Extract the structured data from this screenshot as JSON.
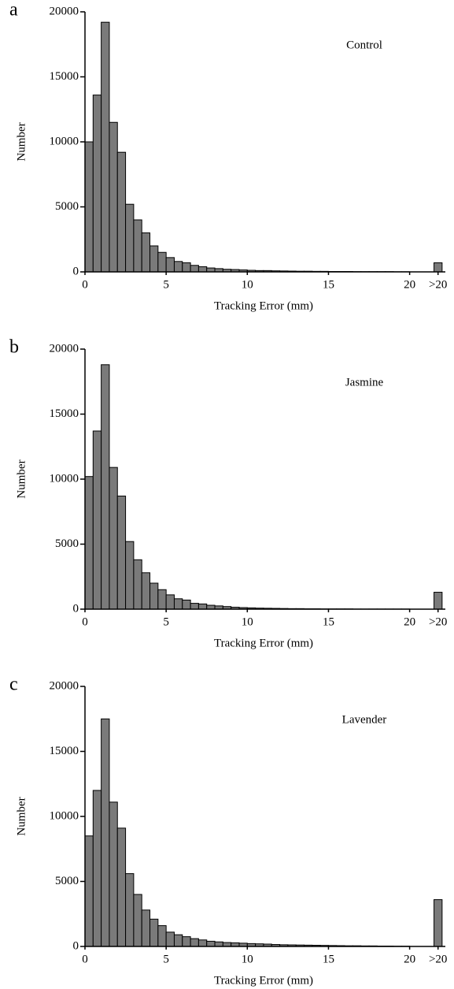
{
  "chart_data": [
    {
      "type": "histogram",
      "panel": "a",
      "title": "Control",
      "x_label": "Tracking Error (mm)",
      "y_label": "Number",
      "color": "#7a7a7a",
      "bins": [
        0,
        0.5,
        1,
        1.5,
        2,
        2.5,
        3,
        3.5,
        4,
        4.5,
        5,
        5.5,
        6,
        6.5,
        7,
        7.5,
        8,
        8.5,
        9,
        9.5,
        10,
        10.5,
        11,
        11.5,
        12,
        12.5,
        13,
        13.5,
        14,
        14.5,
        15,
        15.5,
        16,
        16.5,
        17,
        17.5,
        18,
        18.5,
        19,
        19.5,
        20,
        20.5,
        21,
        21.5,
        22
      ],
      "values": [
        10000,
        13600,
        19200,
        11500,
        9200,
        5200,
        4000,
        3000,
        2000,
        1500,
        1100,
        800,
        700,
        500,
        400,
        300,
        250,
        200,
        180,
        150,
        120,
        100,
        100,
        80,
        70,
        60,
        50,
        50,
        40,
        40,
        30,
        30,
        30,
        20,
        20,
        20,
        20,
        20,
        10,
        10,
        0,
        0,
        0,
        700
      ],
      "xlim": [
        0,
        22.2
      ],
      "ylim": [
        0,
        20000
      ],
      "xticks": [
        0,
        5,
        10,
        15,
        20,
        {
          "value": 21.75,
          "label": ">20"
        }
      ],
      "yticks": [
        0,
        5000,
        10000,
        15000,
        20000
      ]
    },
    {
      "type": "histogram",
      "panel": "b",
      "title": "Jasmine",
      "x_label": "Tracking Error (mm)",
      "y_label": "Number",
      "color": "#7a7a7a",
      "bins": [
        0,
        0.5,
        1,
        1.5,
        2,
        2.5,
        3,
        3.5,
        4,
        4.5,
        5,
        5.5,
        6,
        6.5,
        7,
        7.5,
        8,
        8.5,
        9,
        9.5,
        10,
        10.5,
        11,
        11.5,
        12,
        12.5,
        13,
        13.5,
        14,
        14.5,
        15,
        15.5,
        16,
        16.5,
        17,
        17.5,
        18,
        18.5,
        19,
        19.5,
        20,
        20.5,
        21,
        21.5,
        22
      ],
      "values": [
        10200,
        13700,
        18800,
        10900,
        8700,
        5200,
        3800,
        2800,
        2000,
        1500,
        1100,
        800,
        700,
        450,
        400,
        300,
        250,
        200,
        150,
        120,
        100,
        80,
        70,
        60,
        50,
        40,
        40,
        30,
        30,
        20,
        20,
        20,
        20,
        10,
        10,
        10,
        10,
        10,
        10,
        10,
        0,
        0,
        0,
        1300
      ],
      "xlim": [
        0,
        22.2
      ],
      "ylim": [
        0,
        20000
      ],
      "xticks": [
        0,
        5,
        10,
        15,
        20,
        {
          "value": 21.75,
          "label": ">20"
        }
      ],
      "yticks": [
        0,
        5000,
        10000,
        15000,
        20000
      ]
    },
    {
      "type": "histogram",
      "panel": "c",
      "title": "Lavender",
      "x_label": "Tracking Error (mm)",
      "y_label": "Number",
      "color": "#7a7a7a",
      "bins": [
        0,
        0.5,
        1,
        1.5,
        2,
        2.5,
        3,
        3.5,
        4,
        4.5,
        5,
        5.5,
        6,
        6.5,
        7,
        7.5,
        8,
        8.5,
        9,
        9.5,
        10,
        10.5,
        11,
        11.5,
        12,
        12.5,
        13,
        13.5,
        14,
        14.5,
        15,
        15.5,
        16,
        16.5,
        17,
        17.5,
        18,
        18.5,
        19,
        19.5,
        20,
        20.5,
        21,
        21.5,
        22
      ],
      "values": [
        8500,
        12000,
        17500,
        11100,
        9100,
        5600,
        4000,
        2800,
        2100,
        1600,
        1100,
        900,
        750,
        600,
        500,
        400,
        350,
        300,
        280,
        250,
        220,
        200,
        180,
        150,
        130,
        120,
        110,
        100,
        90,
        80,
        70,
        60,
        50,
        50,
        40,
        40,
        30,
        30,
        20,
        20,
        0,
        0,
        0,
        3600
      ],
      "xlim": [
        0,
        22.2
      ],
      "ylim": [
        0,
        20000
      ],
      "xticks": [
        0,
        5,
        10,
        15,
        20,
        {
          "value": 21.75,
          "label": ">20"
        }
      ],
      "yticks": [
        0,
        5000,
        10000,
        15000,
        20000
      ]
    }
  ]
}
